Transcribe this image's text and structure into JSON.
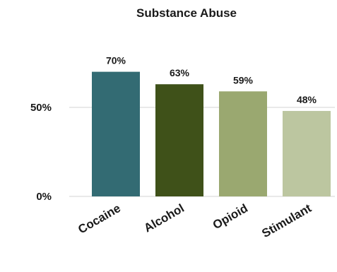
{
  "chart_data": {
    "type": "bar",
    "title": "Substance Abuse",
    "categories": [
      "Cocaine",
      "Alcohol",
      "Opioid",
      "Stimulant"
    ],
    "values": [
      70,
      63,
      59,
      48
    ],
    "data_labels": [
      "70%",
      "63%",
      "59%",
      "48%"
    ],
    "colors": [
      "#336b73",
      "#3f5119",
      "#9aa870",
      "#bcc6a0"
    ],
    "ylim": [
      0,
      100
    ],
    "yticks": [
      {
        "value": 0,
        "label": "0%"
      },
      {
        "value": 50,
        "label": "50%"
      }
    ],
    "gridlines": true,
    "legend": "none",
    "xlabel": "",
    "ylabel": ""
  }
}
